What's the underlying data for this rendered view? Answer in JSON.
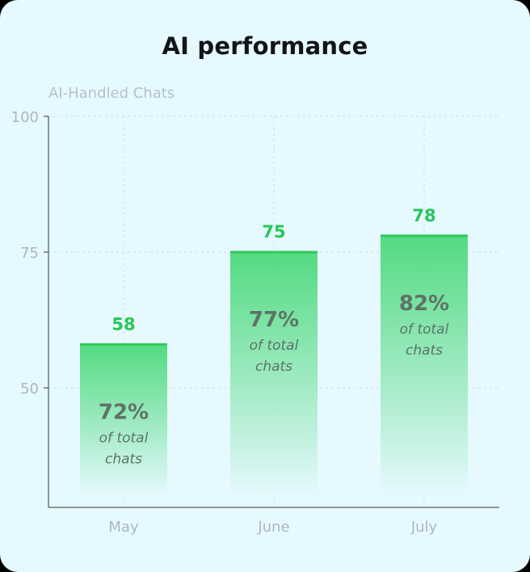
{
  "chart_data": {
    "type": "bar",
    "title": "AI performance",
    "ylabel": "AI-Handled Chats",
    "xlabel": "",
    "categories": [
      "May",
      "June",
      "July"
    ],
    "values": [
      58,
      75,
      78
    ],
    "value_labels": [
      "58",
      "75",
      "78"
    ],
    "share_labels": [
      "72%",
      "77%",
      "82%"
    ],
    "share_caption_line1": "of total",
    "share_caption_line2": "chats",
    "yticks": [
      50,
      75,
      100
    ],
    "ytick_labels": [
      "50",
      "75",
      "100"
    ],
    "ylim": [
      28,
      100
    ],
    "grid": true,
    "colors": {
      "bar_top": "#4cd97b",
      "bar_bottom": "#e6f9fe",
      "bar_cap": "#2ec95c",
      "value_label": "#27c55a",
      "share_label": "#5d7368",
      "axis": "#6d7579",
      "tick_label": "#aab9be",
      "grid": "#cfe0e4"
    }
  }
}
